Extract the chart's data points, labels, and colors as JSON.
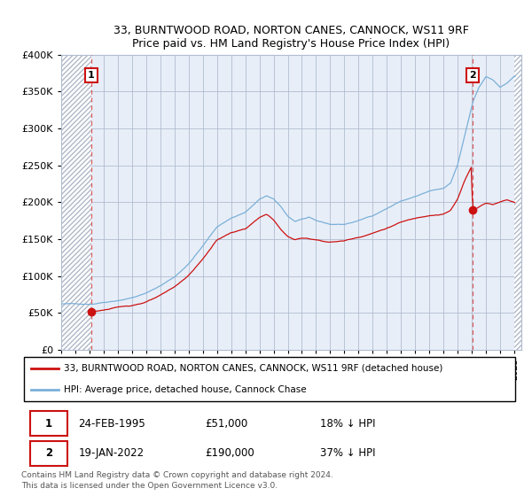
{
  "title_line1": "33, BURNTWOOD ROAD, NORTON CANES, CANNOCK, WS11 9RF",
  "title_line2": "Price paid vs. HM Land Registry's House Price Index (HPI)",
  "ylim": [
    0,
    400000
  ],
  "xlim_start": 1993.0,
  "xlim_end": 2025.5,
  "yticks": [
    0,
    50000,
    100000,
    150000,
    200000,
    250000,
    300000,
    350000,
    400000
  ],
  "ytick_labels": [
    "£0",
    "£50K",
    "£100K",
    "£150K",
    "£200K",
    "£250K",
    "£300K",
    "£350K",
    "£400K"
  ],
  "background_color": "#e8eef8",
  "hatch_bg_color": "#d8d8d8",
  "grid_color": "#b0bcd0",
  "hpi_color": "#7ab0d8",
  "price_color": "#cc1111",
  "dashed_color": "#dd4444",
  "transaction1_date": 1995.12,
  "transaction1_price": 51000,
  "transaction2_date": 2022.05,
  "transaction2_price": 190000,
  "legend_line1": "33, BURNTWOOD ROAD, NORTON CANES, CANNOCK, WS11 9RF (detached house)",
  "legend_line2": "HPI: Average price, detached house, Cannock Chase",
  "table_row1": [
    "1",
    "24-FEB-1995",
    "£51,000",
    "18% ↓ HPI"
  ],
  "table_row2": [
    "2",
    "19-JAN-2022",
    "£190,000",
    "37% ↓ HPI"
  ],
  "footer": "Contains HM Land Registry data © Crown copyright and database right 2024.\nThis data is licensed under the Open Government Licence v3.0.",
  "hatch_right_start": 2025.0
}
